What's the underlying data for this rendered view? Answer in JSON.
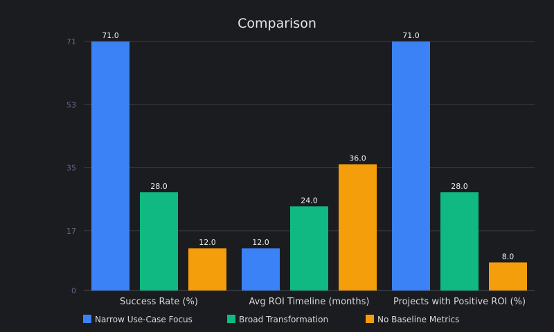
{
  "chart_data": {
    "type": "bar",
    "title": "Comparison",
    "categories": [
      "Success Rate (%)",
      "Avg ROI Timeline (months)",
      "Projects with Positive ROI (%)"
    ],
    "series": [
      {
        "name": "Narrow Use-Case Focus",
        "values": [
          71.0,
          12.0,
          71.0
        ],
        "color": "#3b82f6"
      },
      {
        "name": "Broad Transformation",
        "values": [
          28.0,
          24.0,
          28.0
        ],
        "color": "#10b981"
      },
      {
        "name": "No Baseline Metrics",
        "values": [
          12.0,
          36.0,
          8.0
        ],
        "color": "#f59e0b"
      }
    ],
    "yticks": [
      "0",
      "17",
      "35",
      "53",
      "71"
    ],
    "ylim": [
      0,
      71
    ],
    "grid": true,
    "legend": "bottom-left",
    "value_label_format": "one decimal"
  }
}
